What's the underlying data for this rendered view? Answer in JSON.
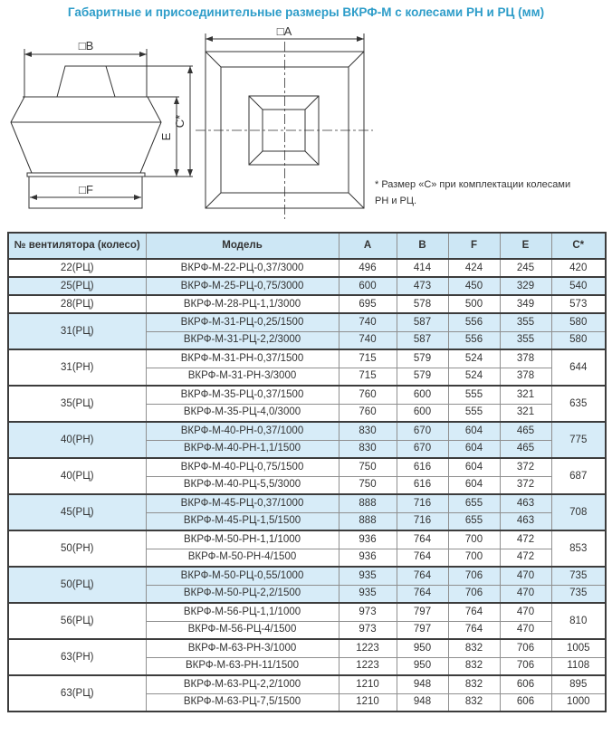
{
  "title": "Габаритные и присоединительные размеры ВКРФ-М с колесами РН и РЦ (мм)",
  "note": {
    "line1": "* Размер «С» при комплектации колесами",
    "line2": "РН и РЦ."
  },
  "drawing": {
    "labels": {
      "b": "□B",
      "a": "□A",
      "f": "□F",
      "e": "E",
      "c": "C*"
    }
  },
  "colors": {
    "title_text": "#2e9dc9",
    "table_header_bg": "#cde7f5",
    "row_highlight_bg": "#d7ecf8",
    "border_dark": "#3c3c3c",
    "border_light": "#8f8f8f",
    "text": "#333333",
    "drawing_line": "#333333"
  },
  "table": {
    "headers": [
      "№ вентилятора (колесо)",
      "Модель",
      "А",
      "В",
      "F",
      "Е",
      "С*"
    ],
    "groups": [
      {
        "label": "22(РЦ)",
        "tint": false,
        "c_merged": null,
        "rows": [
          {
            "model": "ВКРФ-М-22-РЦ-0,37/3000",
            "a": "496",
            "b": "414",
            "f": "424",
            "e": "245",
            "c": "420"
          }
        ]
      },
      {
        "label": "25(РЦ)",
        "tint": true,
        "c_merged": null,
        "rows": [
          {
            "model": "ВКРФ-М-25-РЦ-0,75/3000",
            "a": "600",
            "b": "473",
            "f": "450",
            "e": "329",
            "c": "540"
          }
        ]
      },
      {
        "label": "28(РЦ)",
        "tint": false,
        "c_merged": null,
        "rows": [
          {
            "model": "ВКРФ-М-28-РЦ-1,1/3000",
            "a": "695",
            "b": "578",
            "f": "500",
            "e": "349",
            "c": "573"
          }
        ]
      },
      {
        "label": "31(РЦ)",
        "tint": true,
        "c_merged": null,
        "rows": [
          {
            "model": "ВКРФ-М-31-РЦ-0,25/1500",
            "a": "740",
            "b": "587",
            "f": "556",
            "e": "355",
            "c": "580"
          },
          {
            "model": "ВКРФ-М-31-РЦ-2,2/3000",
            "a": "740",
            "b": "587",
            "f": "556",
            "e": "355",
            "c": "580"
          }
        ]
      },
      {
        "label": "31(РН)",
        "tint": false,
        "c_merged": "644",
        "rows": [
          {
            "model": "ВКРФ-М-31-РН-0,37/1500",
            "a": "715",
            "b": "579",
            "f": "524",
            "e": "378"
          },
          {
            "model": "ВКРФ-М-31-РН-3/3000",
            "a": "715",
            "b": "579",
            "f": "524",
            "e": "378"
          }
        ]
      },
      {
        "label": "35(РЦ)",
        "tint": false,
        "c_merged": "635",
        "rows": [
          {
            "model": "ВКРФ-М-35-РЦ-0,37/1500",
            "a": "760",
            "b": "600",
            "f": "555",
            "e": "321"
          },
          {
            "model": "ВКРФ-М-35-РЦ-4,0/3000",
            "a": "760",
            "b": "600",
            "f": "555",
            "e": "321"
          }
        ]
      },
      {
        "label": "40(РН)",
        "tint": true,
        "c_merged": "775",
        "rows": [
          {
            "model": "ВКРФ-М-40-РН-0,37/1000",
            "a": "830",
            "b": "670",
            "f": "604",
            "e": "465"
          },
          {
            "model": "ВКРФ-М-40-РН-1,1/1500",
            "a": "830",
            "b": "670",
            "f": "604",
            "e": "465"
          }
        ]
      },
      {
        "label": "40(РЦ)",
        "tint": false,
        "c_merged": "687",
        "rows": [
          {
            "model": "ВКРФ-М-40-РЦ-0,75/1500",
            "a": "750",
            "b": "616",
            "f": "604",
            "e": "372"
          },
          {
            "model": "ВКРФ-М-40-РЦ-5,5/3000",
            "a": "750",
            "b": "616",
            "f": "604",
            "e": "372"
          }
        ]
      },
      {
        "label": "45(РЦ)",
        "tint": true,
        "c_merged": "708",
        "rows": [
          {
            "model": "ВКРФ-М-45-РЦ-0,37/1000",
            "a": "888",
            "b": "716",
            "f": "655",
            "e": "463"
          },
          {
            "model": "ВКРФ-М-45-РЦ-1,5/1500",
            "a": "888",
            "b": "716",
            "f": "655",
            "e": "463"
          }
        ]
      },
      {
        "label": "50(РН)",
        "tint": false,
        "c_merged": "853",
        "rows": [
          {
            "model": "ВКРФ-М-50-РН-1,1/1000",
            "a": "936",
            "b": "764",
            "f": "700",
            "e": "472"
          },
          {
            "model": "ВКРФ-М-50-РН-4/1500",
            "a": "936",
            "b": "764",
            "f": "700",
            "e": "472"
          }
        ]
      },
      {
        "label": "50(РЦ)",
        "tint": true,
        "c_merged": null,
        "rows": [
          {
            "model": "ВКРФ-М-50-РЦ-0,55/1000",
            "a": "935",
            "b": "764",
            "f": "706",
            "e": "470",
            "c": "735"
          },
          {
            "model": "ВКРФ-М-50-РЦ-2,2/1500",
            "a": "935",
            "b": "764",
            "f": "706",
            "e": "470",
            "c": "735"
          }
        ]
      },
      {
        "label": "56(РЦ)",
        "tint": false,
        "c_merged": "810",
        "rows": [
          {
            "model": "ВКРФ-М-56-РЦ-1,1/1000",
            "a": "973",
            "b": "797",
            "f": "764",
            "e": "470"
          },
          {
            "model": "ВКРФ-М-56-РЦ-4/1500",
            "a": "973",
            "b": "797",
            "f": "764",
            "e": "470"
          }
        ]
      },
      {
        "label": "63(РН)",
        "tint": false,
        "c_merged": null,
        "rows": [
          {
            "model": "ВКРФ-М-63-РН-3/1000",
            "a": "1223",
            "b": "950",
            "f": "832",
            "e": "706",
            "c": "1005"
          },
          {
            "model": "ВКРФ-М-63-РН-11/1500",
            "a": "1223",
            "b": "950",
            "f": "832",
            "e": "706",
            "c": "1108"
          }
        ]
      },
      {
        "label": "63(РЦ)",
        "tint": false,
        "c_merged": null,
        "rows": [
          {
            "model": "ВКРФ-М-63-РЦ-2,2/1000",
            "a": "1210",
            "b": "948",
            "f": "832",
            "e": "606",
            "c": "895"
          },
          {
            "model": "ВКРФ-М-63-РЦ-7,5/1500",
            "a": "1210",
            "b": "948",
            "f": "832",
            "e": "606",
            "c": "1000"
          }
        ]
      }
    ]
  }
}
